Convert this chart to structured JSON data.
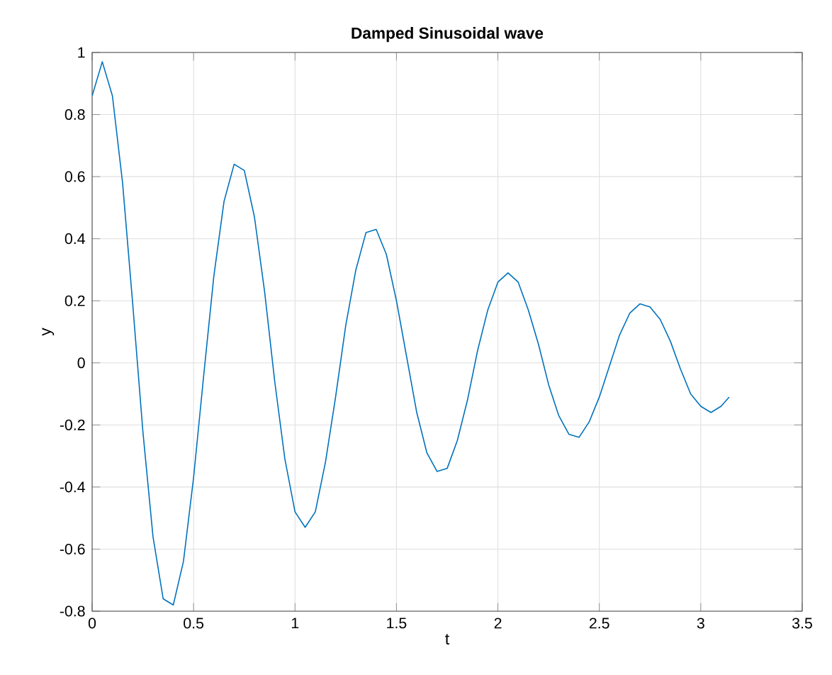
{
  "chart_data": {
    "type": "line",
    "title": "Damped Sinusoidal wave",
    "xlabel": "t",
    "ylabel": "y",
    "x": [
      0,
      0.05,
      0.1,
      0.15,
      0.2,
      0.25,
      0.3,
      0.35,
      0.4,
      0.45,
      0.5,
      0.55,
      0.6,
      0.65,
      0.7,
      0.75,
      0.8,
      0.85,
      0.9,
      0.95,
      1.0,
      1.05,
      1.1,
      1.15,
      1.2,
      1.25,
      1.3,
      1.35,
      1.4,
      1.45,
      1.5,
      1.55,
      1.6,
      1.65,
      1.7,
      1.75,
      1.8,
      1.85,
      1.9,
      1.95,
      2.0,
      2.05,
      2.1,
      2.15,
      2.2,
      2.25,
      2.3,
      2.35,
      2.4,
      2.45,
      2.5,
      2.55,
      2.6,
      2.65,
      2.7,
      2.75,
      2.8,
      2.85,
      2.9,
      2.95,
      3.0,
      3.05,
      3.1,
      3.14
    ],
    "series": [
      {
        "color": "#0072bd",
        "values": [
          0.86,
          0.97,
          0.86,
          0.58,
          0.19,
          -0.22,
          -0.56,
          -0.76,
          -0.78,
          -0.64,
          -0.37,
          -0.04,
          0.28,
          0.52,
          0.64,
          0.62,
          0.47,
          0.23,
          -0.06,
          -0.31,
          -0.48,
          -0.53,
          -0.48,
          -0.32,
          -0.11,
          0.12,
          0.3,
          0.42,
          0.43,
          0.35,
          0.2,
          0.02,
          -0.16,
          -0.29,
          -0.35,
          -0.34,
          -0.25,
          -0.12,
          0.04,
          0.17,
          0.26,
          0.29,
          0.26,
          0.17,
          0.06,
          -0.07,
          -0.17,
          -0.23,
          -0.24,
          -0.19,
          -0.11,
          -0.01,
          0.09,
          0.16,
          0.19,
          0.18,
          0.14,
          0.07,
          -0.02,
          -0.1,
          -0.14,
          -0.16,
          -0.14,
          -0.11
        ]
      }
    ],
    "xlim": [
      0,
      3.5
    ],
    "ylim": [
      -0.8,
      1
    ],
    "xticks": [
      0,
      0.5,
      1,
      1.5,
      2,
      2.5,
      3,
      3.5
    ],
    "yticks": [
      -0.8,
      -0.6,
      -0.4,
      -0.2,
      0,
      0.2,
      0.4,
      0.6,
      0.8,
      1
    ],
    "grid": true,
    "marker": "none",
    "line_style": "solid"
  }
}
